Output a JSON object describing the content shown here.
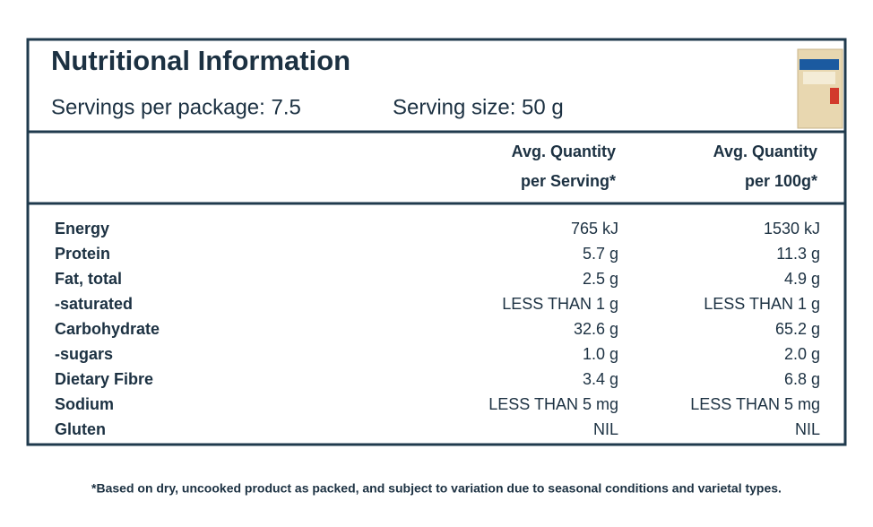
{
  "header": {
    "title": "Nutritional Information",
    "servings": "Servings per package: 7.5",
    "serving_size": "Serving size: 50 g"
  },
  "table": {
    "columns": [
      [
        "Avg. Quantity",
        "per Serving*"
      ],
      [
        "Avg. Quantity",
        "per 100g*"
      ]
    ],
    "rows": [
      [
        "Energy",
        "765 kJ",
        "1530 kJ"
      ],
      [
        "Protein",
        "5.7 g",
        "11.3 g"
      ],
      [
        "Fat, total",
        "2.5 g",
        "4.9 g"
      ],
      [
        "-saturated",
        "LESS THAN 1 g",
        "LESS THAN 1 g"
      ],
      [
        "Carbohydrate",
        "32.6 g",
        "65.2 g"
      ],
      [
        "-sugars",
        "1.0 g",
        "2.0 g"
      ],
      [
        "Dietary Fibre",
        "3.4 g",
        "6.8 g"
      ],
      [
        "Sodium",
        "LESS THAN 5 mg",
        "LESS THAN 5 mg"
      ],
      [
        "Gluten",
        "NIL",
        "NIL"
      ]
    ]
  },
  "footnote": "*Based on dry, uncooked product as packed, and subject to variation due to seasonal conditions and varietal types."
}
